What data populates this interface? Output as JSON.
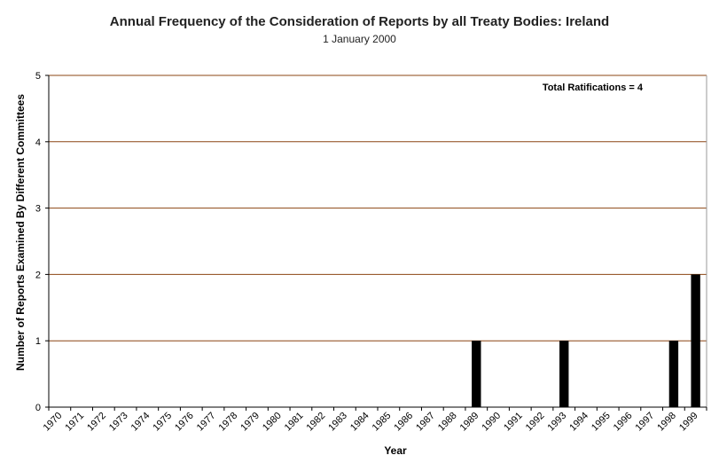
{
  "chart_data": {
    "type": "bar",
    "title": "Annual Frequency of the Consideration of Reports by all Treaty Bodies: Ireland",
    "subtitle": "1 January 2000",
    "xlabel": "Year",
    "ylabel": "Number of Reports Examined By Different Committees",
    "ylim": [
      0,
      5
    ],
    "yticks": [
      "0",
      "1",
      "2",
      "3",
      "4",
      "5"
    ],
    "grid": true,
    "annotation": "Total Ratifications = 4",
    "annotation_position": "top-right",
    "categories": [
      "1970",
      "1971",
      "1972",
      "1973",
      "1974",
      "1975",
      "1976",
      "1977",
      "1978",
      "1979",
      "1980",
      "1981",
      "1982",
      "1983",
      "1984",
      "1985",
      "1986",
      "1987",
      "1988",
      "1989",
      "1990",
      "1991",
      "1992",
      "1993",
      "1994",
      "1995",
      "1996",
      "1997",
      "1998",
      "1999"
    ],
    "values": [
      0,
      0,
      0,
      0,
      0,
      0,
      0,
      0,
      0,
      0,
      0,
      0,
      0,
      0,
      0,
      0,
      0,
      0,
      0,
      1,
      0,
      0,
      0,
      1,
      0,
      0,
      0,
      0,
      1,
      2
    ],
    "colors": {
      "bar": "#000000",
      "grid": "#8b4513",
      "axis": "#000000",
      "text": "#222222"
    }
  }
}
